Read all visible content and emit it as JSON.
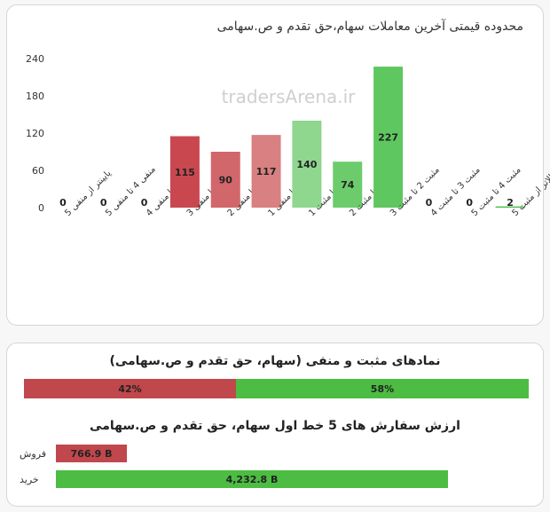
{
  "chart_card": {
    "title": "محدوده قیمتی آخرین معاملات سهام،حق تقدم و ص.سهامی",
    "watermark": "tradersArena.ir"
  },
  "chart_data": {
    "type": "bar",
    "title": "محدوده قیمتی آخرین معاملات سهام،حق تقدم و ص.سهامی",
    "categories": [
      "پایینتر از منفی 5",
      "منفی 4 تا منفی 5",
      "منفی 3 تا منفی 4",
      "منفی 2 تا منفی 3",
      "منفی 1 تا منفی 2",
      "صفر تا منفی 1",
      "صفر تا مثبت 1",
      "مثبت 1 تا مثبت 2",
      "مثبت 2 تا مثبت 3",
      "مثبت 3 تا مثبت 4",
      "مثبت 4 تا مثبت 5",
      "بالاتر از مثبت 5"
    ],
    "values": [
      0,
      0,
      0,
      115,
      90,
      117,
      140,
      74,
      227,
      0,
      0,
      2
    ],
    "colors": [
      "#c9484f",
      "#c9484f",
      "#c9484f",
      "#c9484f",
      "#d2676b",
      "#d98082",
      "#8fd68f",
      "#6ccc6c",
      "#5fc75f",
      "#4fc04f",
      "#4fc04f",
      "#4fc04f"
    ],
    "yticks": [
      0,
      60,
      120,
      180,
      240
    ],
    "ylim": [
      0,
      240
    ],
    "xlabel": "",
    "ylabel": "",
    "grid": false
  },
  "breadth": {
    "title": "نمادهای مثبت و منفی (سهام، حق تقدم و ص.سهامی)",
    "negative_pct": 42,
    "positive_pct": 58,
    "negative_label": "42%",
    "positive_label": "58%",
    "negative_color": "#c0474b",
    "positive_color": "#4cbc42"
  },
  "orders": {
    "title": "ارزش سفارش های 5 خط اول سهام، حق تقدم و ص.سهامی",
    "sell_label": "فروش",
    "buy_label": "خرید",
    "sell_value": 766.9,
    "buy_value": 4232.8,
    "sell_text": "766.9 B",
    "buy_text": "4,232.8 B",
    "sell_color": "#c0474b",
    "buy_color": "#4cbc42"
  }
}
